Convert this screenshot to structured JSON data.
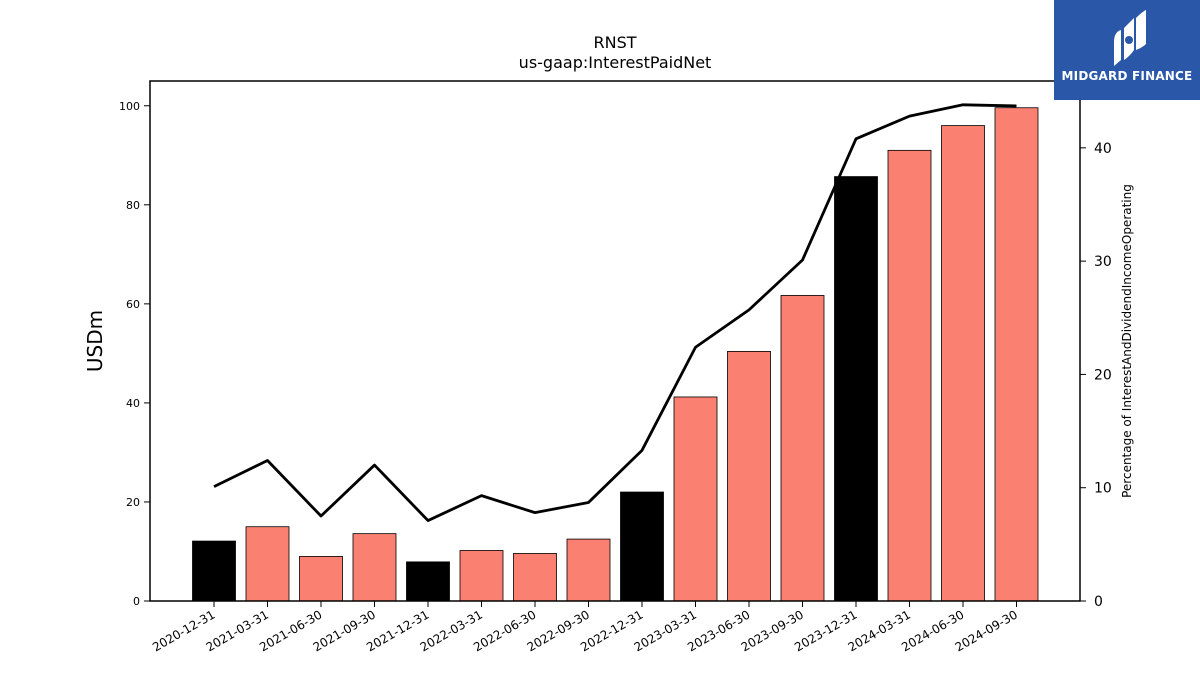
{
  "brand": {
    "name": "MIDGARD FINANCE",
    "background": "#2a57a8"
  },
  "chart_data": {
    "type": "bar",
    "title": "RNST",
    "subtitle": "us-gaap:InterestPaidNet",
    "ylabel": "USDm",
    "y2label": "Percentage of InterestAndDividendIncomeOperating",
    "ylim": [
      0,
      105
    ],
    "y2lim": [
      0,
      45.9
    ],
    "yticks": [
      0,
      20,
      40,
      60,
      80,
      100
    ],
    "y2ticks": [
      0,
      10,
      20,
      30,
      40
    ],
    "categories": [
      "2020-12-31",
      "2021-03-31",
      "2021-06-30",
      "2021-09-30",
      "2021-12-31",
      "2022-03-31",
      "2022-06-30",
      "2022-09-30",
      "2022-12-31",
      "2023-03-31",
      "2023-06-30",
      "2023-09-30",
      "2023-12-31",
      "2024-03-31",
      "2024-06-30",
      "2024-09-30"
    ],
    "series": [
      {
        "kind": "bar",
        "axis": "left",
        "values": [
          12.1,
          15.0,
          9.0,
          13.6,
          7.9,
          10.2,
          9.6,
          12.5,
          22.0,
          41.2,
          50.4,
          61.7,
          85.7,
          91.0,
          96.0,
          99.6
        ],
        "colors": [
          "#000000",
          "#fa8072",
          "#fa8072",
          "#fa8072",
          "#000000",
          "#fa8072",
          "#fa8072",
          "#fa8072",
          "#000000",
          "#fa8072",
          "#fa8072",
          "#fa8072",
          "#000000",
          "#fa8072",
          "#fa8072",
          "#fa8072"
        ]
      },
      {
        "kind": "line",
        "axis": "right",
        "color": "#000000",
        "values": [
          10.1,
          12.4,
          7.5,
          12.0,
          7.1,
          9.3,
          7.8,
          8.7,
          13.3,
          22.4,
          25.7,
          30.1,
          40.8,
          42.8,
          43.8,
          43.7
        ]
      }
    ],
    "grid": false,
    "legend": "none"
  }
}
